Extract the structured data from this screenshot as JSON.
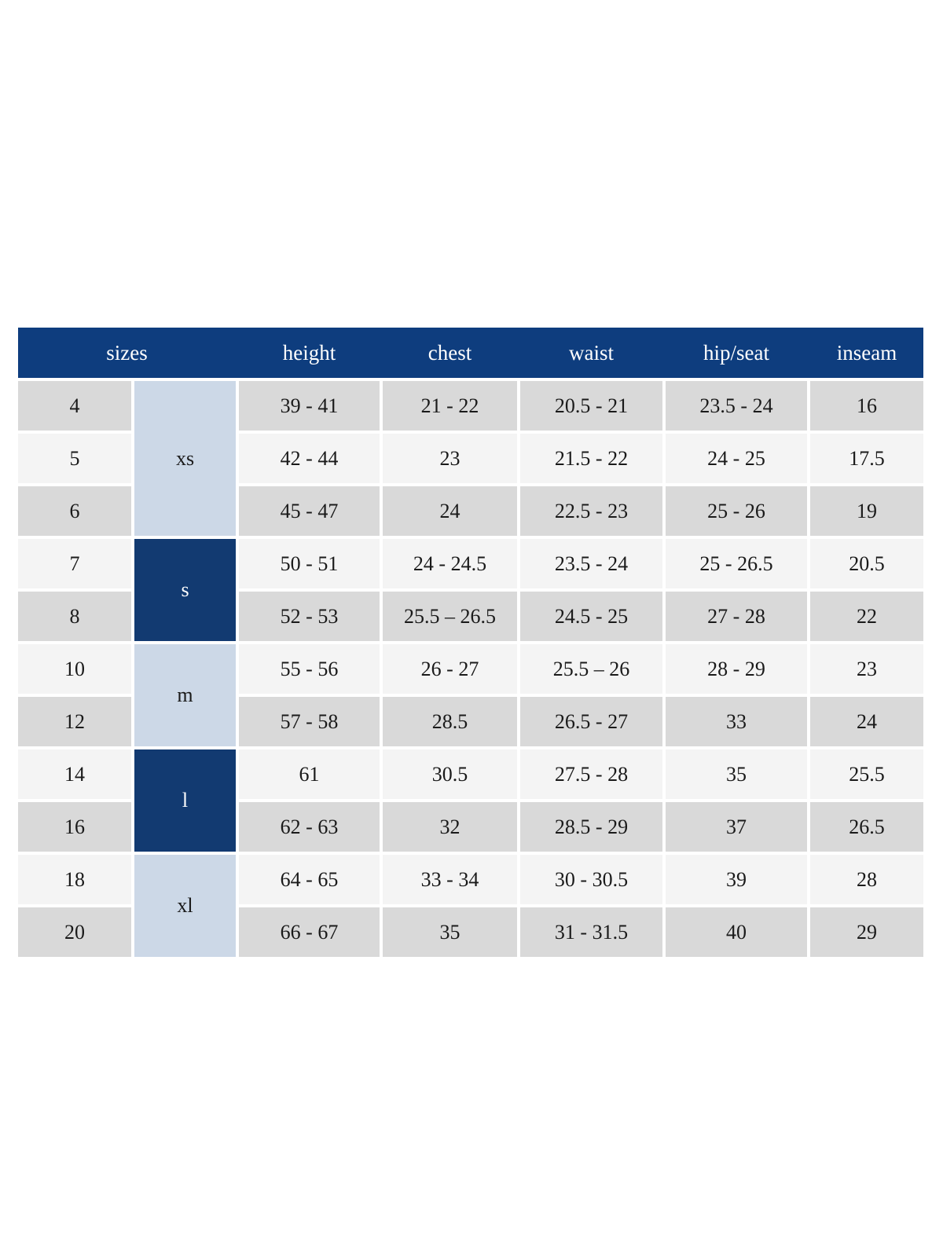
{
  "chart_data": {
    "type": "table",
    "header": {
      "sizes_label": "sizes",
      "columns": [
        "height",
        "chest",
        "waist",
        "hip/seat",
        "inseam"
      ]
    },
    "groups": [
      {
        "label": "xs",
        "span": 3,
        "tone": "light",
        "sizes": [
          "4",
          "5",
          "6"
        ]
      },
      {
        "label": "s",
        "span": 2,
        "tone": "dark",
        "sizes": [
          "7",
          "8"
        ]
      },
      {
        "label": "m",
        "span": 2,
        "tone": "light",
        "sizes": [
          "10",
          "12"
        ]
      },
      {
        "label": "l",
        "span": 2,
        "tone": "dark",
        "sizes": [
          "14",
          "16"
        ]
      },
      {
        "label": "xl",
        "span": 2,
        "tone": "light",
        "sizes": [
          "18",
          "20"
        ]
      }
    ],
    "rows": [
      {
        "size": "4",
        "group": "xs",
        "height": "39 - 41",
        "chest": "21 - 22",
        "waist": "20.5 - 21",
        "hip_seat": "23.5 - 24",
        "inseam": "16"
      },
      {
        "size": "5",
        "group": "xs",
        "height": "42 - 44",
        "chest": "23",
        "waist": "21.5 - 22",
        "hip_seat": "24 - 25",
        "inseam": "17.5"
      },
      {
        "size": "6",
        "group": "xs",
        "height": "45 - 47",
        "chest": "24",
        "waist": "22.5 - 23",
        "hip_seat": "25 - 26",
        "inseam": "19"
      },
      {
        "size": "7",
        "group": "s",
        "height": "50 - 51",
        "chest": "24 - 24.5",
        "waist": "23.5 - 24",
        "hip_seat": "25 - 26.5",
        "inseam": "20.5"
      },
      {
        "size": "8",
        "group": "s",
        "height": "52 - 53",
        "chest": "25.5 – 26.5",
        "waist": "24.5 - 25",
        "hip_seat": "27 - 28",
        "inseam": "22"
      },
      {
        "size": "10",
        "group": "m",
        "height": "55 - 56",
        "chest": "26 - 27",
        "waist": "25.5 – 26",
        "hip_seat": "28 - 29",
        "inseam": "23"
      },
      {
        "size": "12",
        "group": "m",
        "height": "57 - 58",
        "chest": "28.5",
        "waist": "26.5 - 27",
        "hip_seat": "33",
        "inseam": "24"
      },
      {
        "size": "14",
        "group": "l",
        "height": "61",
        "chest": "30.5",
        "waist": "27.5 - 28",
        "hip_seat": "35",
        "inseam": "25.5"
      },
      {
        "size": "16",
        "group": "l",
        "height": "62 - 63",
        "chest": "32",
        "waist": "28.5 - 29",
        "hip_seat": "37",
        "inseam": "26.5"
      },
      {
        "size": "18",
        "group": "xl",
        "height": "64 - 65",
        "chest": "33 - 34",
        "waist": "30 - 30.5",
        "hip_seat": "39",
        "inseam": "28"
      },
      {
        "size": "20",
        "group": "xl",
        "height": "66 - 67",
        "chest": "35",
        "waist": "31 - 31.5",
        "hip_seat": "40",
        "inseam": "29"
      }
    ]
  },
  "colors": {
    "header_navy": "#0e3d7e",
    "group_navy": "#123a71",
    "group_light_blue": "#ccd8e7",
    "row_gray": "#d9d9d9",
    "row_light": "#f4f4f4",
    "cell_text": "#1a1a1a",
    "header_text": "#ffffff"
  }
}
